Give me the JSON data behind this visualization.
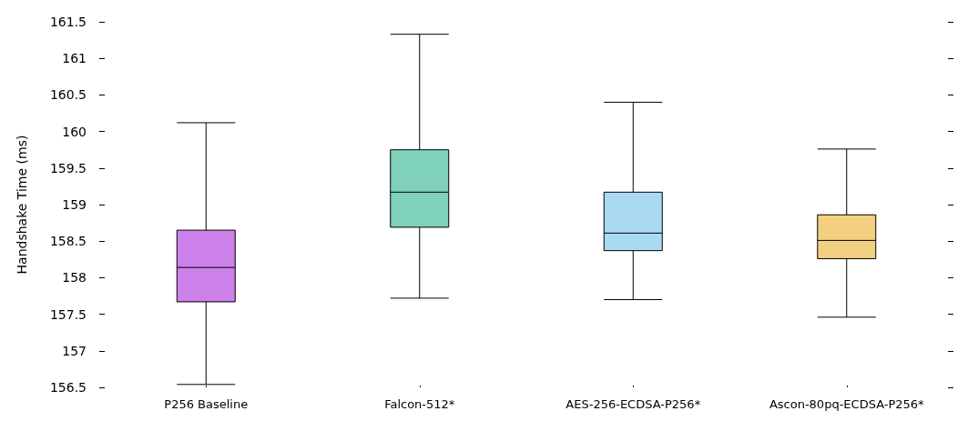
{
  "chart_data": {
    "type": "box",
    "ylabel": "Handshake Time (ms)",
    "categories": [
      "P256 Baseline",
      "Falcon-512*",
      "AES-256-ECDSA-P256*",
      "Ascon-80pq-ECDSA-P256*"
    ],
    "boxes": [
      {
        "low": 156.54,
        "q1": 157.67,
        "median": 158.14,
        "q3": 158.65,
        "high": 160.12
      },
      {
        "low": 157.72,
        "q1": 158.69,
        "median": 159.17,
        "q3": 159.75,
        "high": 161.33
      },
      {
        "low": 157.7,
        "q1": 158.37,
        "median": 158.61,
        "q3": 159.17,
        "high": 160.4
      },
      {
        "low": 157.46,
        "q1": 158.26,
        "median": 158.51,
        "q3": 158.86,
        "high": 159.76
      }
    ],
    "colors": [
      "#cc80ea",
      "#80d1bc",
      "#abdaf4",
      "#f2d080"
    ],
    "ylim": [
      156.5,
      161.5
    ],
    "yticks": [
      156.5,
      157,
      157.5,
      158,
      158.5,
      159,
      159.5,
      160,
      160.5,
      161,
      161.5
    ],
    "grid": false
  }
}
